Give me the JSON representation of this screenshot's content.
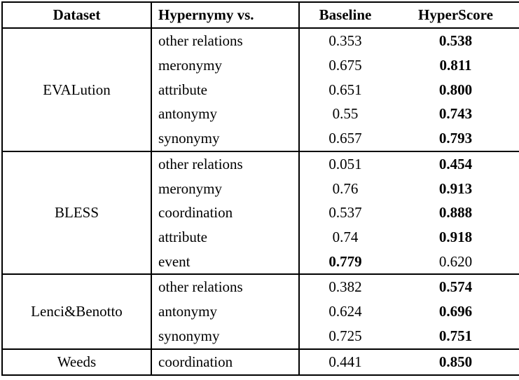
{
  "table": {
    "headers": [
      "Dataset",
      "Hypernymy vs.",
      "Baseline",
      "HyperScore"
    ],
    "groups": [
      {
        "dataset": "EVALution",
        "rows": [
          {
            "relation": "other relations",
            "baseline": {
              "text": "0.353",
              "bold": false
            },
            "hyperscore": {
              "text": "0.538",
              "bold": true
            }
          },
          {
            "relation": "meronymy",
            "baseline": {
              "text": "0.675",
              "bold": false
            },
            "hyperscore": {
              "text": "0.811",
              "bold": true
            }
          },
          {
            "relation": "attribute",
            "baseline": {
              "text": "0.651",
              "bold": false
            },
            "hyperscore": {
              "text": "0.800",
              "bold": true
            }
          },
          {
            "relation": "antonymy",
            "baseline": {
              "text": "0.55",
              "bold": false
            },
            "hyperscore": {
              "text": "0.743",
              "bold": true
            }
          },
          {
            "relation": "synonymy",
            "baseline": {
              "text": "0.657",
              "bold": false
            },
            "hyperscore": {
              "text": "0.793",
              "bold": true
            }
          }
        ]
      },
      {
        "dataset": "BLESS",
        "rows": [
          {
            "relation": "other relations",
            "baseline": {
              "text": "0.051",
              "bold": false
            },
            "hyperscore": {
              "text": "0.454",
              "bold": true
            }
          },
          {
            "relation": "meronymy",
            "baseline": {
              "text": "0.76",
              "bold": false
            },
            "hyperscore": {
              "text": "0.913",
              "bold": true
            }
          },
          {
            "relation": "coordination",
            "baseline": {
              "text": "0.537",
              "bold": false
            },
            "hyperscore": {
              "text": "0.888",
              "bold": true
            }
          },
          {
            "relation": "attribute",
            "baseline": {
              "text": "0.74",
              "bold": false
            },
            "hyperscore": {
              "text": "0.918",
              "bold": true
            }
          },
          {
            "relation": "event",
            "baseline": {
              "text": "0.779",
              "bold": true
            },
            "hyperscore": {
              "text": "0.620",
              "bold": false
            }
          }
        ]
      },
      {
        "dataset": "Lenci&Benotto",
        "rows": [
          {
            "relation": "other relations",
            "baseline": {
              "text": "0.382",
              "bold": false
            },
            "hyperscore": {
              "text": "0.574",
              "bold": true
            }
          },
          {
            "relation": "antonymy",
            "baseline": {
              "text": "0.624",
              "bold": false
            },
            "hyperscore": {
              "text": "0.696",
              "bold": true
            }
          },
          {
            "relation": "synonymy",
            "baseline": {
              "text": "0.725",
              "bold": false
            },
            "hyperscore": {
              "text": "0.751",
              "bold": true
            }
          }
        ]
      },
      {
        "dataset": "Weeds",
        "rows": [
          {
            "relation": "coordination",
            "baseline": {
              "text": "0.441",
              "bold": false
            },
            "hyperscore": {
              "text": "0.850",
              "bold": true
            }
          }
        ]
      }
    ]
  }
}
